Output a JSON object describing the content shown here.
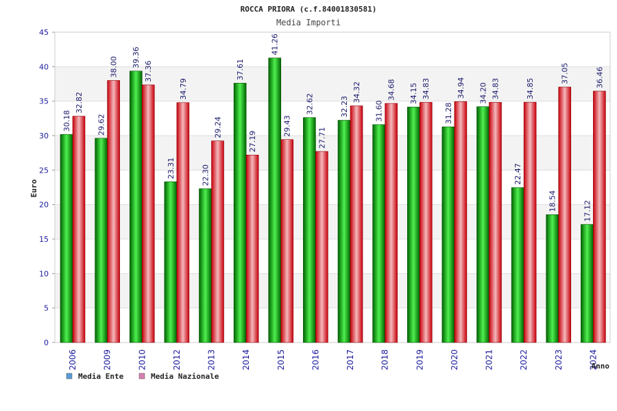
{
  "chart_data": {
    "type": "bar",
    "title": "ROCCA PRIORA (c.f.84001830581)",
    "subtitle": "Media Importi",
    "ylabel": "Euro",
    "xlabel": "Anno",
    "ylim": [
      0,
      45
    ],
    "yticks": [
      0,
      5,
      10,
      15,
      20,
      25,
      30,
      35,
      40,
      45
    ],
    "grid": true,
    "legend_position": "bottom-left",
    "categories": [
      "2006",
      "2009",
      "2010",
      "2012",
      "2013",
      "2014",
      "2015",
      "2016",
      "2017",
      "2018",
      "2019",
      "2020",
      "2021",
      "2022",
      "2023",
      "2024"
    ],
    "series": [
      {
        "name": "Media Ente",
        "color": "#00b000",
        "legend_color": "#5b9bd5",
        "values": [
          30.18,
          29.62,
          39.36,
          23.31,
          22.3,
          37.61,
          41.26,
          32.62,
          32.23,
          31.6,
          34.15,
          31.28,
          34.2,
          22.47,
          18.54,
          17.12
        ],
        "labels": [
          "30.18",
          "29.62",
          "39.36",
          "23.31",
          "22.30",
          "37.61",
          "41.26",
          "32.62",
          "32.23",
          "31.60",
          "34.15",
          "31.28",
          "34.20",
          "22.47",
          "18.54",
          "17.12"
        ]
      },
      {
        "name": "Media Nazionale",
        "color": "#e8202a",
        "legend_color": "#d77fb0",
        "values": [
          32.82,
          38.0,
          37.36,
          34.79,
          29.24,
          27.19,
          29.43,
          27.71,
          34.32,
          34.68,
          34.83,
          34.94,
          34.83,
          34.85,
          37.05,
          36.46
        ],
        "labels": [
          "32.82",
          "38.00",
          "37.36",
          "34.79",
          "29.24",
          "27.19",
          "29.43",
          "27.71",
          "34.32",
          "34.68",
          "34.83",
          "34.94",
          "34.83",
          "34.85",
          "37.05",
          "36.46"
        ]
      }
    ]
  }
}
